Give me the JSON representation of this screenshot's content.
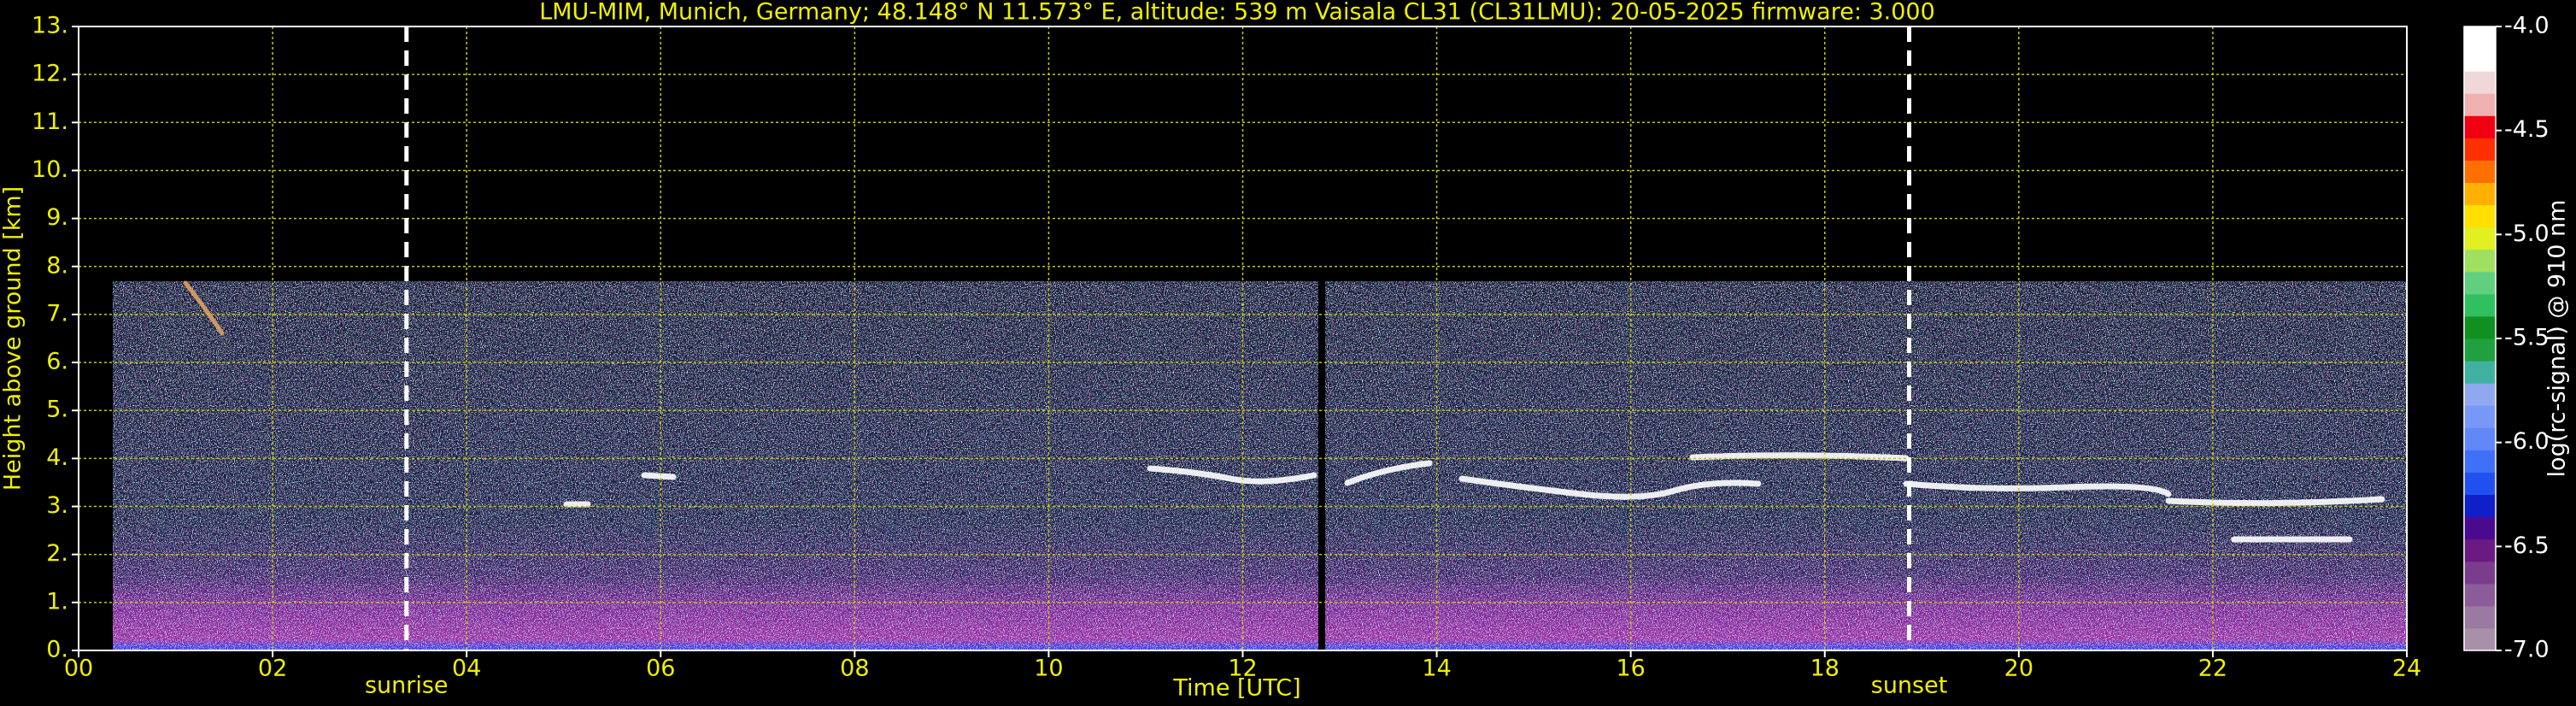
{
  "chart_data": {
    "type": "heatmap",
    "title": "LMU-MIM, Munich, Germany; 48.148° N 11.573° E, altitude: 539 m    Vaisala CL31 (CL31LMU): 20-05-2025    firmware: 3.000",
    "xlabel": "Time [UTC]",
    "ylabel": "Height above ground [km]",
    "xlim": [
      0,
      24
    ],
    "xticks": [
      {
        "value": 0,
        "label": "00"
      },
      {
        "value": 2,
        "label": "02"
      },
      {
        "value": 4,
        "label": "04"
      },
      {
        "value": 6,
        "label": "06"
      },
      {
        "value": 8,
        "label": "08"
      },
      {
        "value": 10,
        "label": "10"
      },
      {
        "value": 12,
        "label": "12"
      },
      {
        "value": 14,
        "label": "14"
      },
      {
        "value": 16,
        "label": "16"
      },
      {
        "value": 18,
        "label": "18"
      },
      {
        "value": 20,
        "label": "20"
      },
      {
        "value": 22,
        "label": "22"
      },
      {
        "value": 24,
        "label": "24"
      }
    ],
    "ylim": [
      0,
      13
    ],
    "yticks": [
      {
        "value": 0,
        "label": "0."
      },
      {
        "value": 1,
        "label": "1."
      },
      {
        "value": 2,
        "label": "2."
      },
      {
        "value": 3,
        "label": "3."
      },
      {
        "value": 4,
        "label": "4."
      },
      {
        "value": 5,
        "label": "5."
      },
      {
        "value": 6,
        "label": "6."
      },
      {
        "value": 7,
        "label": "7."
      },
      {
        "value": 8,
        "label": "8."
      },
      {
        "value": 9,
        "label": "9."
      },
      {
        "value": 10,
        "label": "10."
      },
      {
        "value": 11,
        "label": "11."
      },
      {
        "value": 12,
        "label": "12."
      },
      {
        "value": 13,
        "label": "13."
      }
    ],
    "grid": true,
    "grid_color": "#c8c800",
    "annotations": [
      {
        "x": 3.38,
        "label": "sunrise"
      },
      {
        "x": 18.87,
        "label": "sunset"
      }
    ],
    "colorbar": {
      "label": "log(rc-signal) @ 910 nm",
      "lim": [
        -7,
        -4
      ],
      "ticks": [
        {
          "value": -7,
          "label": "-7.0"
        },
        {
          "value": -6.5,
          "label": "-6.5"
        },
        {
          "value": -6,
          "label": "-6.0"
        },
        {
          "value": -5.5,
          "label": "-5.5"
        },
        {
          "value": -5,
          "label": "-5.0"
        },
        {
          "value": -4.5,
          "label": "-4.5"
        },
        {
          "value": -4,
          "label": "-4.0"
        }
      ],
      "colors": [
        "#a890a8",
        "#9a7aa0",
        "#8c5c98",
        "#7a3c8c",
        "#6a1a80",
        "#4a0a90",
        "#1020c8",
        "#2050f0",
        "#4070f8",
        "#6088f8",
        "#7898f8",
        "#90a8f0",
        "#40b0a0",
        "#20a040",
        "#109020",
        "#30c060",
        "#60d080",
        "#a0e060",
        "#e0f020",
        "#ffe000",
        "#ffb000",
        "#ff7000",
        "#ff3000",
        "#f00010",
        "#f0b0b0",
        "#f0d8d8",
        "#ffffff",
        "#ffffff"
      ]
    }
  }
}
